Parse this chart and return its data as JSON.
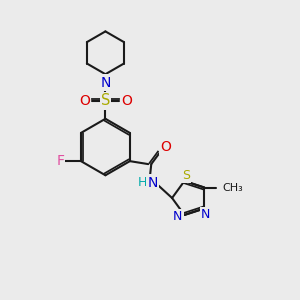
{
  "bg": "#ebebeb",
  "black": "#1a1a1a",
  "blue": "#0000cc",
  "red": "#dd0000",
  "yellow": "#aaaa00",
  "pink": "#e050a0",
  "cyan": "#00aaaa",
  "lw": 1.5,
  "fs": 9.0,
  "figsize": [
    3.0,
    3.0
  ],
  "dpi": 100,
  "xlim": [
    0,
    10
  ],
  "ylim": [
    0,
    10
  ]
}
